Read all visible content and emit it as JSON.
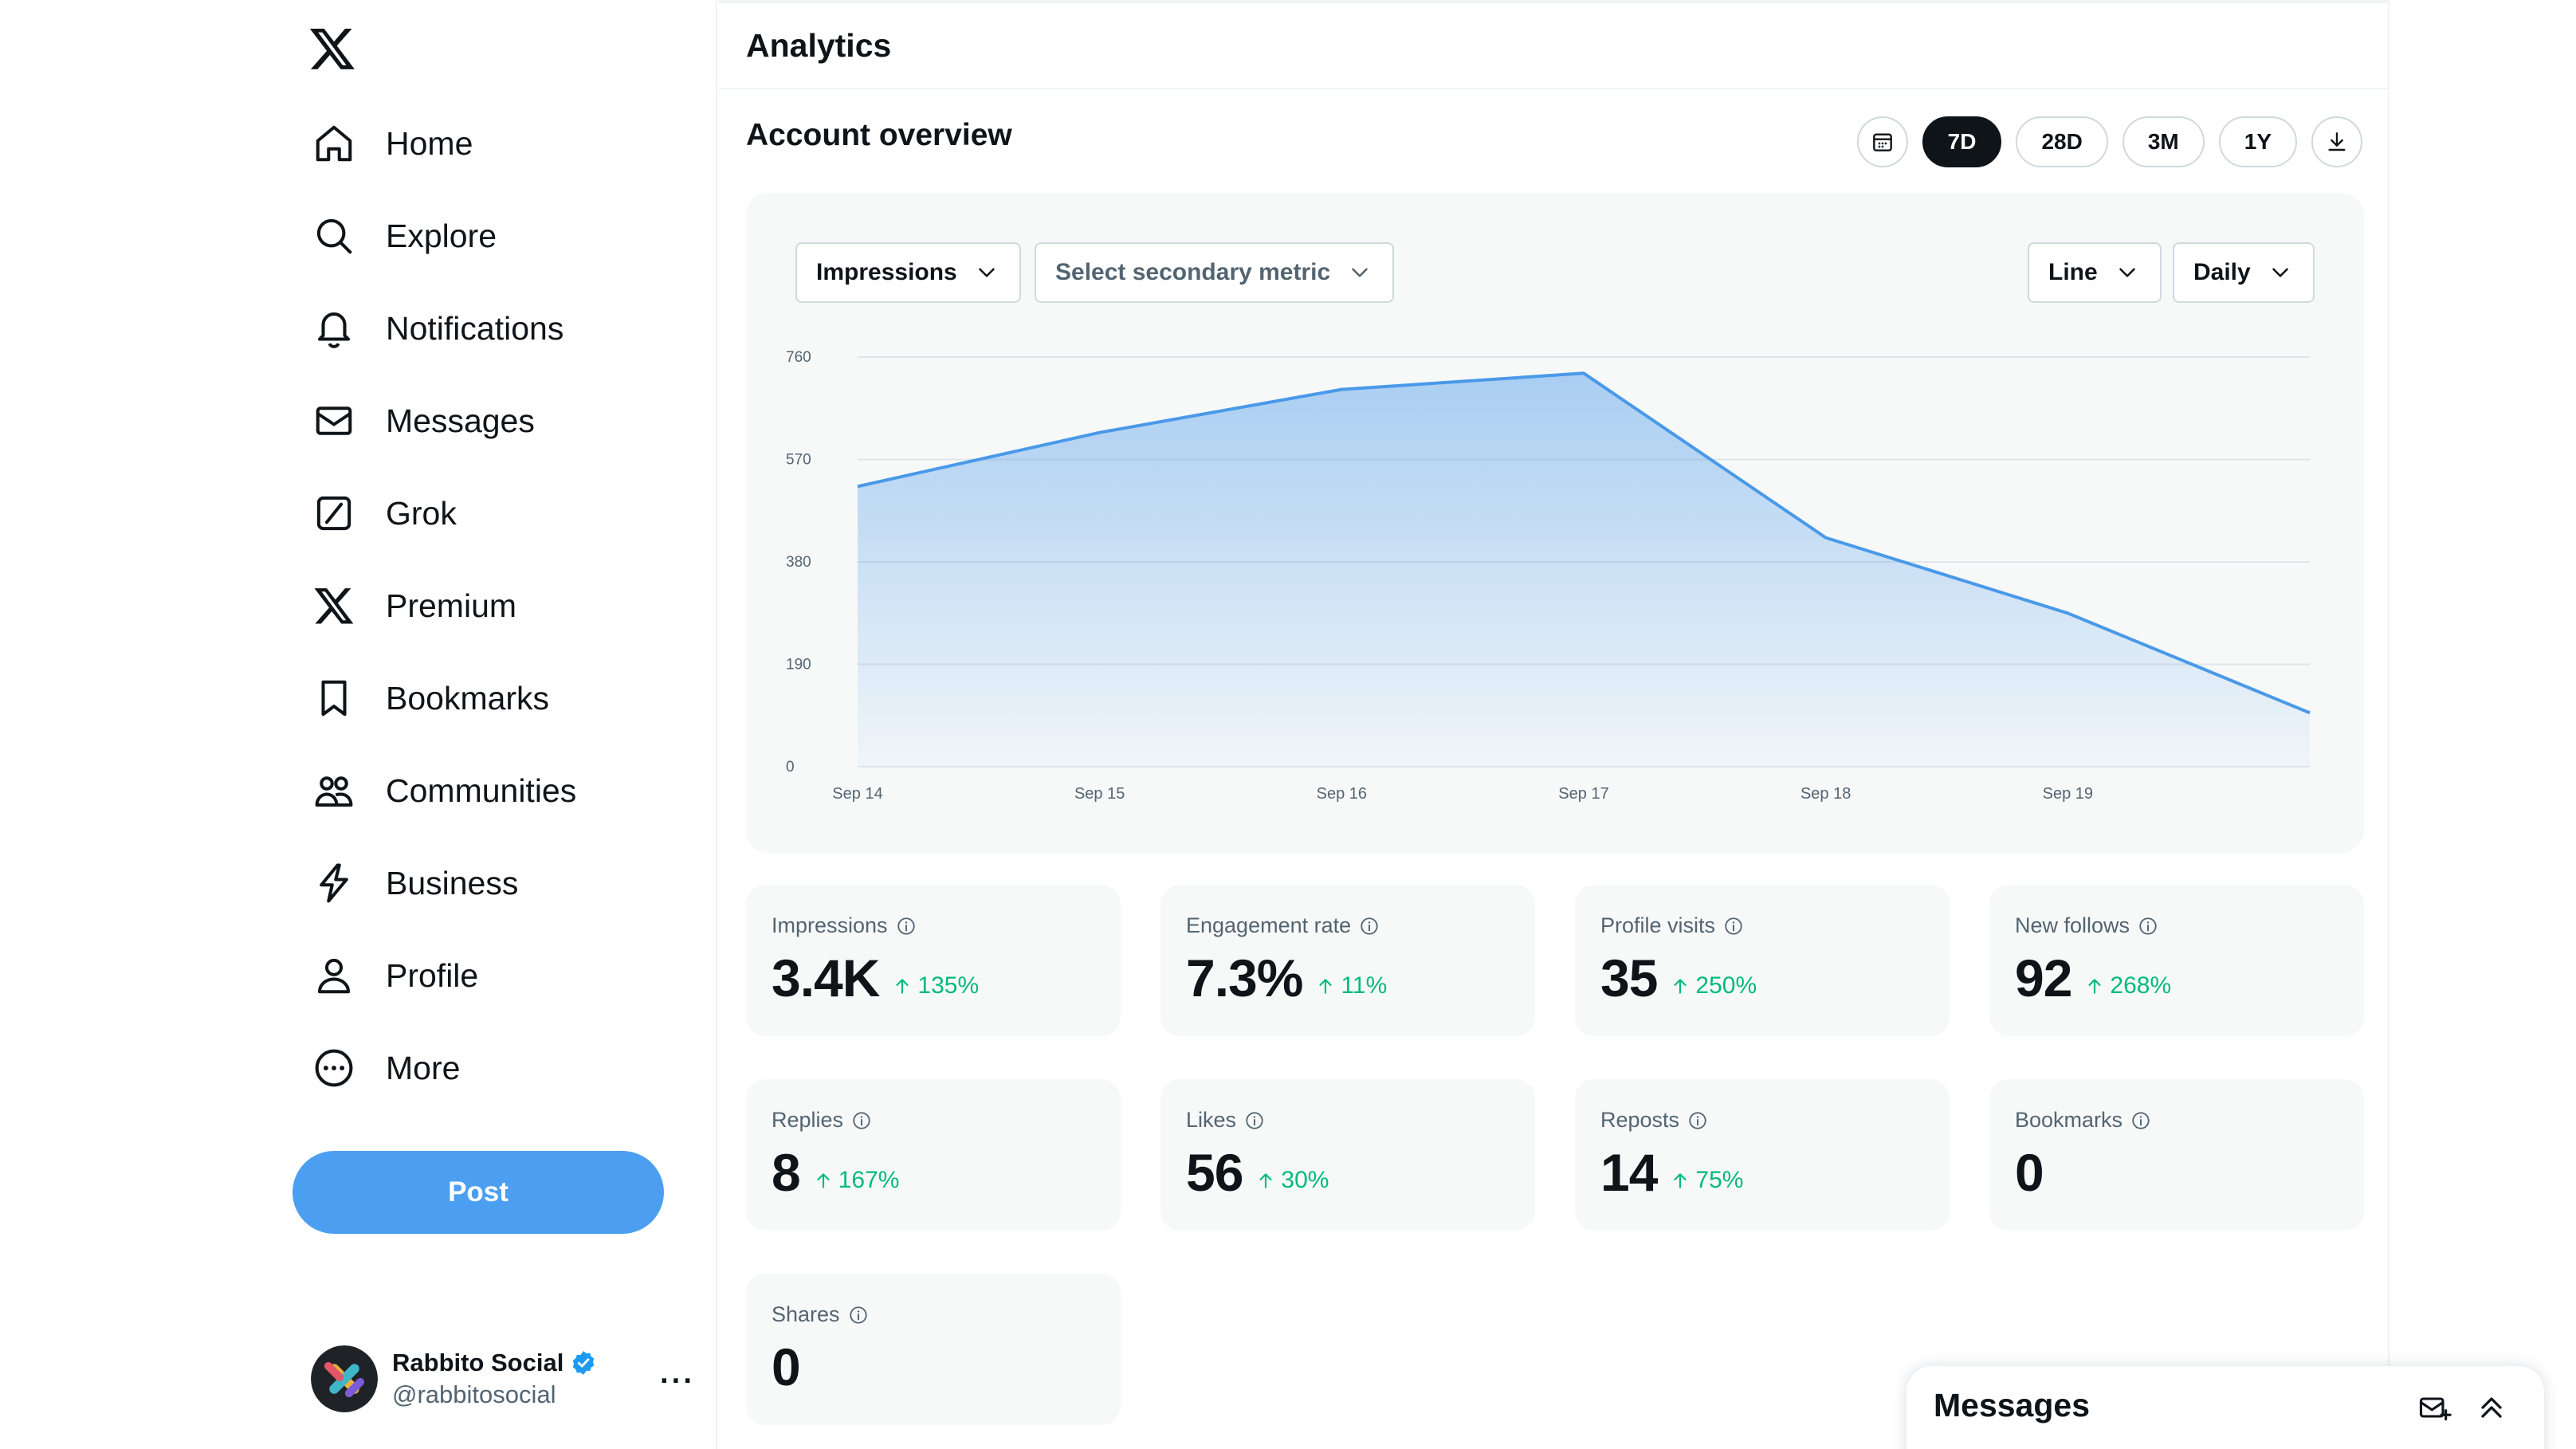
{
  "app": {
    "logo": "x-logo-icon"
  },
  "sidebar": {
    "items": [
      {
        "label": "Home",
        "icon": "home-icon"
      },
      {
        "label": "Explore",
        "icon": "search-icon"
      },
      {
        "label": "Notifications",
        "icon": "bell-icon"
      },
      {
        "label": "Messages",
        "icon": "envelope-icon"
      },
      {
        "label": "Grok",
        "icon": "grok-icon"
      },
      {
        "label": "Premium",
        "icon": "x-logo-icon"
      },
      {
        "label": "Bookmarks",
        "icon": "bookmark-icon"
      },
      {
        "label": "Communities",
        "icon": "people-icon"
      },
      {
        "label": "Business",
        "icon": "lightning-icon"
      },
      {
        "label": "Profile",
        "icon": "person-icon"
      },
      {
        "label": "More",
        "icon": "more-circle-icon"
      }
    ],
    "post_label": "Post",
    "account": {
      "name": "Rabbito Social",
      "handle": "@rabbitosocial",
      "more": "···"
    }
  },
  "main": {
    "title": "Analytics",
    "section_title": "Account overview",
    "ranges": [
      "7D",
      "28D",
      "3M",
      "1Y"
    ],
    "active_range": "7D",
    "chart_controls": {
      "primary_metric": "Impressions",
      "secondary_metric": "Select secondary metric",
      "chart_type": "Line",
      "interval": "Daily"
    },
    "stats": [
      {
        "label": "Impressions",
        "value": "3.4K",
        "change": "135%"
      },
      {
        "label": "Engagement rate",
        "value": "7.3%",
        "change": "11%"
      },
      {
        "label": "Profile visits",
        "value": "35",
        "change": "250%"
      },
      {
        "label": "New follows",
        "value": "92",
        "change": "268%"
      },
      {
        "label": "Replies",
        "value": "8",
        "change": "167%"
      },
      {
        "label": "Likes",
        "value": "56",
        "change": "30%"
      },
      {
        "label": "Reposts",
        "value": "14",
        "change": "75%"
      },
      {
        "label": "Bookmarks",
        "value": "0",
        "change": ""
      },
      {
        "label": "Shares",
        "value": "0",
        "change": ""
      }
    ]
  },
  "chart_data": {
    "type": "area",
    "x": [
      "Sep 14",
      "Sep 15",
      "Sep 16",
      "Sep 17",
      "Sep 18",
      "Sep 19",
      ""
    ],
    "series": [
      {
        "name": "Impressions",
        "values": [
          520,
          620,
          700,
          730,
          425,
          285,
          100
        ]
      }
    ],
    "yticks": [
      0,
      190,
      380,
      570,
      760
    ],
    "ylim": [
      0,
      760
    ],
    "grid": true,
    "color": "#4a99e9"
  },
  "messages_drawer": {
    "title": "Messages"
  },
  "colors": {
    "accent": "#4c9ff0",
    "positive": "#00ba7c",
    "card": "#f7f9f9"
  }
}
